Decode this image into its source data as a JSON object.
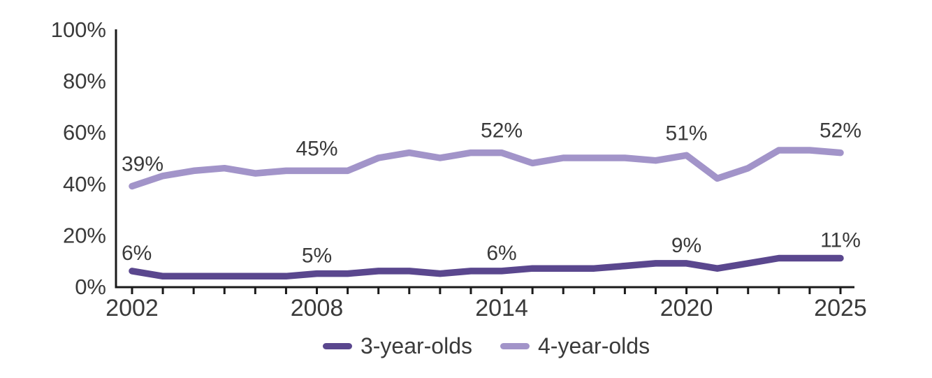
{
  "chart_data": {
    "type": "line",
    "title": "",
    "xlabel": "",
    "ylabel": "",
    "x": [
      2002,
      2003,
      2004,
      2005,
      2006,
      2007,
      2008,
      2009,
      2010,
      2011,
      2012,
      2013,
      2014,
      2015,
      2016,
      2017,
      2018,
      2019,
      2020,
      2021,
      2022,
      2023,
      2024,
      2025
    ],
    "x_tick_labeled_years": [
      2002,
      2008,
      2014,
      2020,
      2025
    ],
    "x_tick_labels": [
      "2002",
      "2008",
      "2014",
      "2020",
      "2025"
    ],
    "ylim": [
      0,
      100
    ],
    "y_ticks": [
      0,
      20,
      40,
      60,
      80,
      100
    ],
    "y_tick_suffix": "%",
    "grid": false,
    "legend_position": "bottom-center",
    "series": [
      {
        "name": "3-year-olds",
        "color": "#5a478e",
        "values": [
          6,
          4,
          4,
          4,
          4,
          4,
          5,
          5,
          6,
          6,
          5,
          6,
          6,
          7,
          7,
          7,
          8,
          9,
          9,
          7,
          9,
          11,
          11,
          11
        ],
        "point_labels": {
          "2002": "6%",
          "2008": "5%",
          "2014": "6%",
          "2020": "9%",
          "2025": "11%"
        },
        "label_offset": -16
      },
      {
        "name": "4-year-olds",
        "color": "#a294c9",
        "values": [
          39,
          43,
          45,
          46,
          44,
          45,
          45,
          45,
          50,
          52,
          50,
          52,
          52,
          48,
          50,
          50,
          50,
          49,
          51,
          42,
          46,
          53,
          53,
          52
        ],
        "point_labels": {
          "2002": "39%",
          "2008": "45%",
          "2014": "52%",
          "2020": "51%",
          "2025": "52%"
        },
        "label_offset": -22
      }
    ],
    "colors": {
      "axis": "#1a1a1a",
      "text": "#3a3a3a",
      "background": "#ffffff"
    }
  }
}
